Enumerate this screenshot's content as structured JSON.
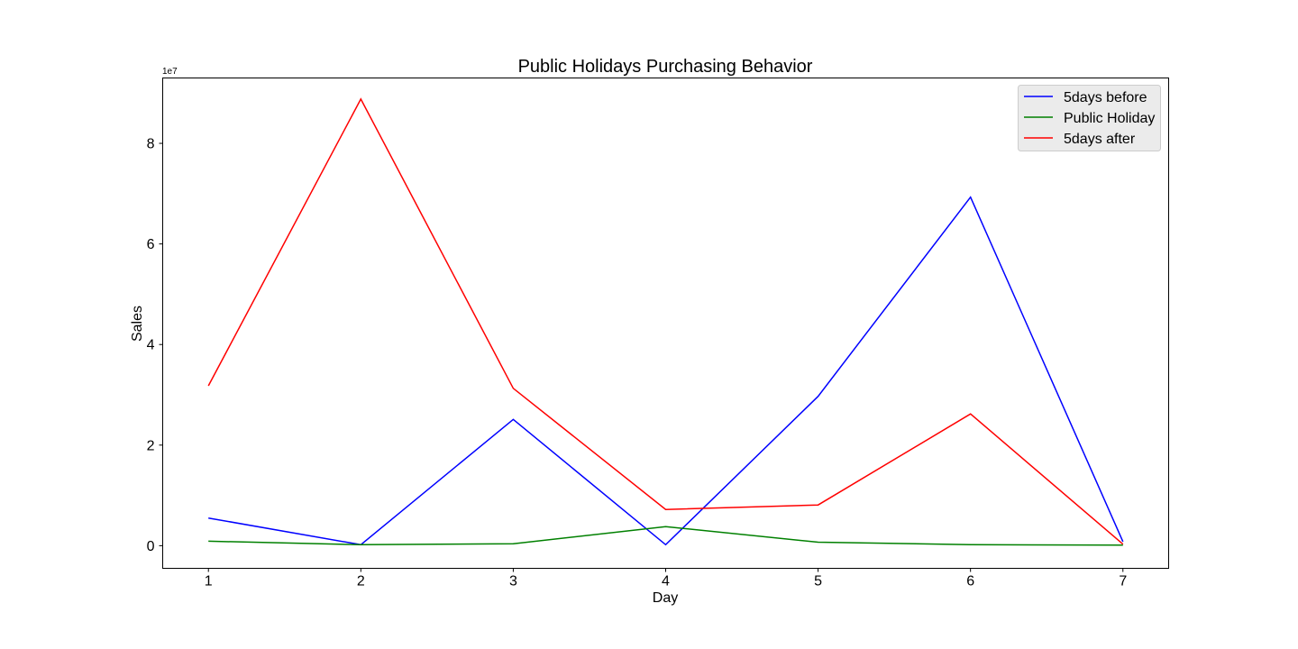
{
  "chart_data": {
    "type": "line",
    "title": "Public Holidays Purchasing Behavior",
    "xlabel": "Day",
    "ylabel": "Sales",
    "y_offset_label": "1e7",
    "x": [
      1,
      2,
      3,
      4,
      5,
      6,
      7
    ],
    "x_ticks": [
      "1",
      "2",
      "3",
      "4",
      "5",
      "6",
      "7"
    ],
    "y_ticks": [
      {
        "value": 0,
        "label": "0"
      },
      {
        "value": 20000000,
        "label": "2"
      },
      {
        "value": 40000000,
        "label": "4"
      },
      {
        "value": 60000000,
        "label": "6"
      },
      {
        "value": 80000000,
        "label": "8"
      }
    ],
    "xlim": [
      0.7,
      7.3
    ],
    "ylim": [
      -4500000,
      93000000
    ],
    "grid": false,
    "legend_position": "top-right",
    "series": [
      {
        "name": "5days before",
        "color": "#0000ff",
        "values": [
          5500000,
          200000,
          25100000,
          200000,
          29700000,
          69300000,
          800000
        ]
      },
      {
        "name": "Public Holiday",
        "color": "#008000",
        "values": [
          900000,
          200000,
          400000,
          3800000,
          700000,
          200000,
          100000
        ]
      },
      {
        "name": "5days after",
        "color": "#ff0000",
        "values": [
          31800000,
          88800000,
          31300000,
          7200000,
          8100000,
          26200000,
          300000
        ]
      }
    ]
  }
}
